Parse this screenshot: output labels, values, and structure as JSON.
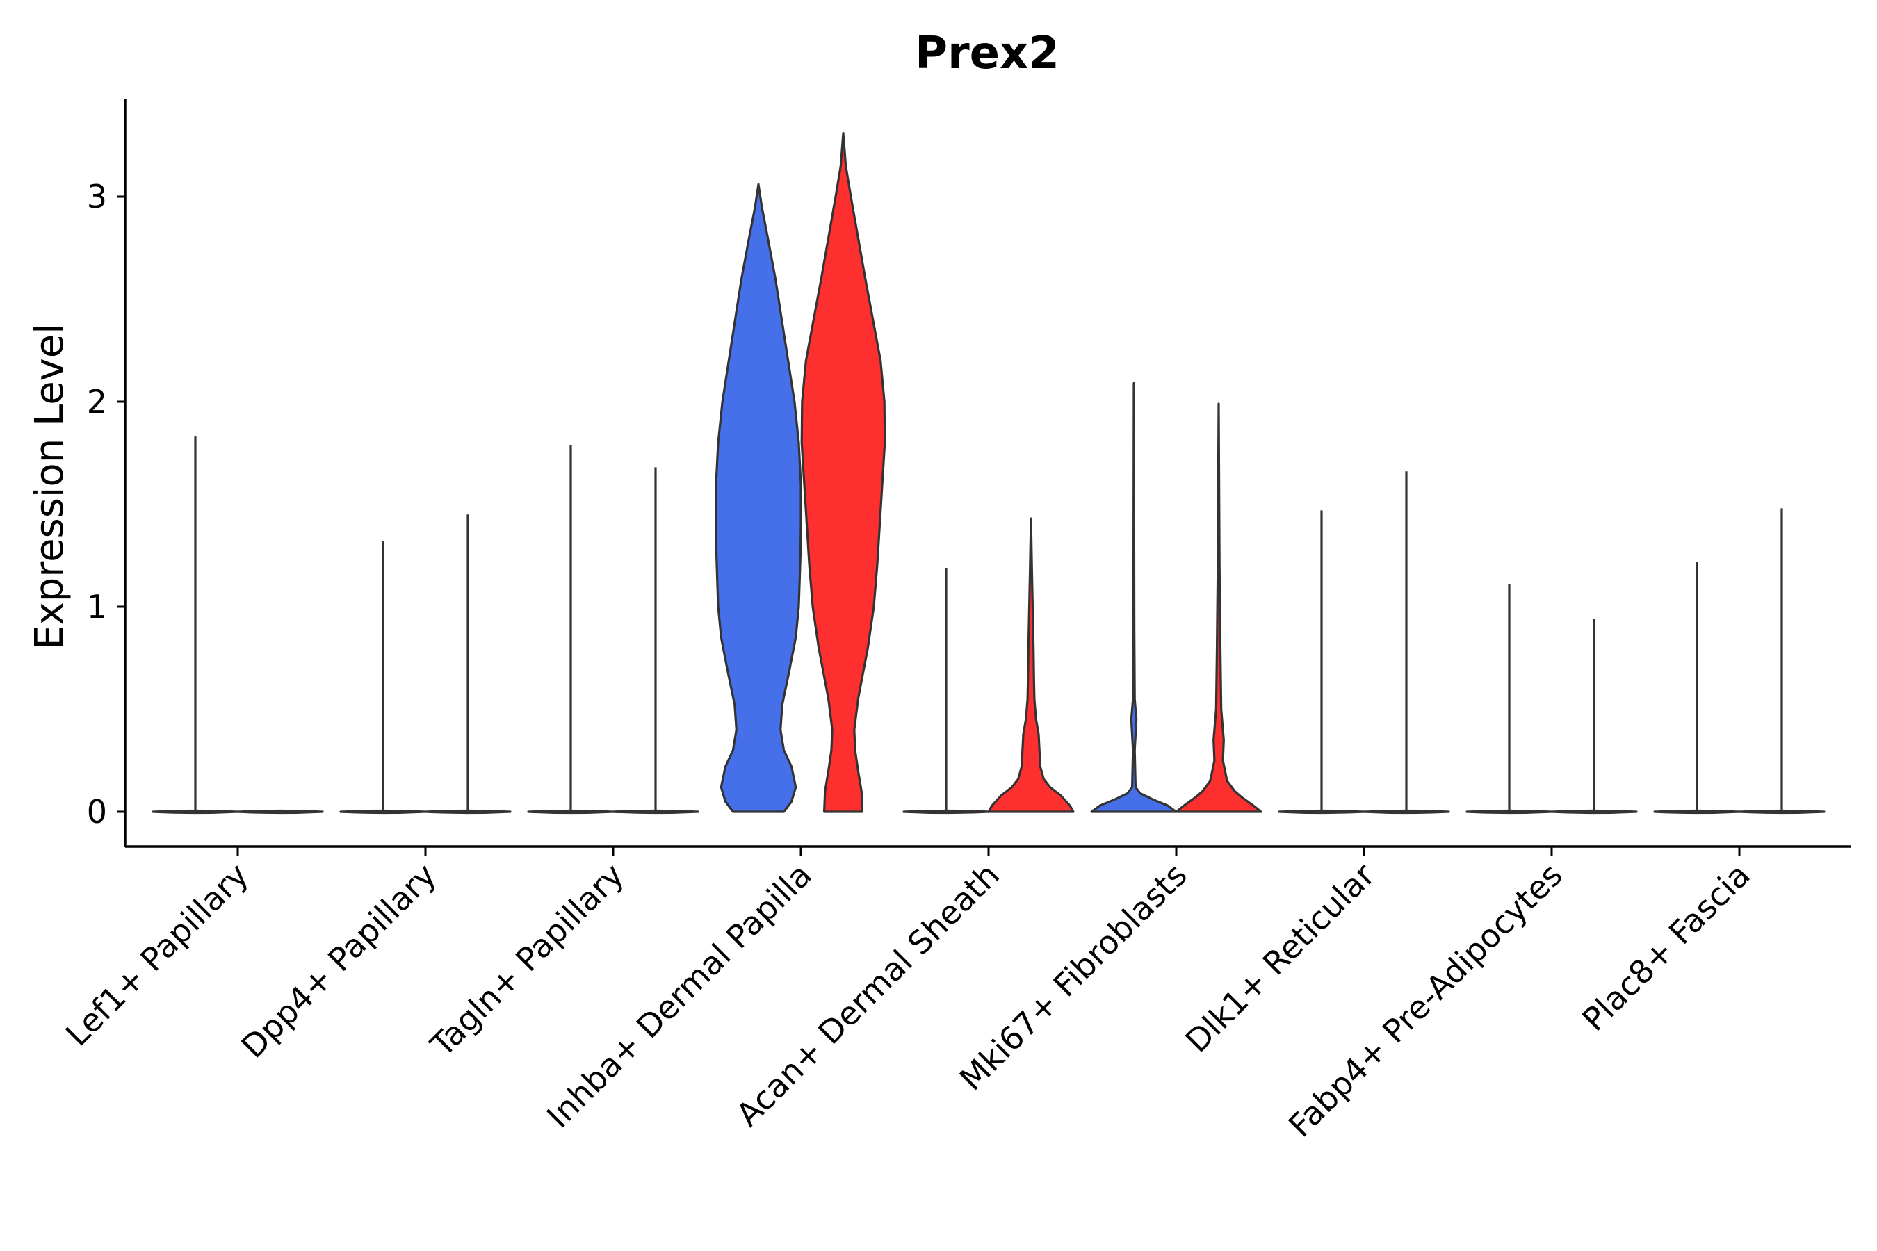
{
  "chart_data": {
    "type": "violin",
    "title": "Prex2",
    "xlabel": "",
    "ylabel": "Expression Level",
    "ylim": [
      -0.17,
      3.5
    ],
    "yticks": [
      0,
      1,
      2,
      3
    ],
    "categories": [
      "Lef1+ Papillary",
      "Dpp4+ Papillary",
      "Tagln+ Papillary",
      "Inhba+ Dermal Papilla",
      "Acan+ Dermal Sheath",
      "Mki67+ Fibroblasts",
      "Dlk1+ Reticular",
      "Fabp4+ Pre-Adipocytes",
      "Plac8+ Fascia"
    ],
    "groups": [
      {
        "name": "group-1",
        "color": "#4570ea"
      },
      {
        "name": "group-2",
        "color": "#fe2f2f"
      }
    ],
    "violins": [
      {
        "category": 0,
        "group": 0,
        "max": 1.83,
        "profile": [
          [
            0,
            0.05
          ],
          [
            0.02,
            0.01
          ],
          [
            1.83,
            0
          ]
        ]
      },
      {
        "category": 0,
        "group": 1,
        "max": 0,
        "profile": [
          [
            0,
            0.05
          ],
          [
            0.02,
            0.01
          ]
        ]
      },
      {
        "category": 1,
        "group": 0,
        "max": 1.32,
        "profile": [
          [
            0,
            0.05
          ],
          [
            0.02,
            0.01
          ],
          [
            1.32,
            0
          ]
        ]
      },
      {
        "category": 1,
        "group": 1,
        "max": 1.45,
        "profile": [
          [
            0,
            0.05
          ],
          [
            0.02,
            0.01
          ],
          [
            1.45,
            0
          ]
        ]
      },
      {
        "category": 2,
        "group": 0,
        "max": 1.79,
        "profile": [
          [
            0,
            0.05
          ],
          [
            0.02,
            0.01
          ],
          [
            1.79,
            0
          ]
        ]
      },
      {
        "category": 2,
        "group": 1,
        "max": 1.68,
        "profile": [
          [
            0,
            0.05
          ],
          [
            0.02,
            0.01
          ],
          [
            1.68,
            0
          ]
        ]
      },
      {
        "category": 3,
        "group": 0,
        "max": 3.06,
        "profile": [
          [
            0,
            0.6
          ],
          [
            0.05,
            0.78
          ],
          [
            0.12,
            0.88
          ],
          [
            0.22,
            0.78
          ],
          [
            0.3,
            0.6
          ],
          [
            0.4,
            0.52
          ],
          [
            0.52,
            0.56
          ],
          [
            0.68,
            0.72
          ],
          [
            0.85,
            0.88
          ],
          [
            1.0,
            0.95
          ],
          [
            1.12,
            0.97
          ],
          [
            1.25,
            0.99
          ],
          [
            1.4,
            1.0
          ],
          [
            1.6,
            1.0
          ],
          [
            1.8,
            0.95
          ],
          [
            2.0,
            0.85
          ],
          [
            2.2,
            0.7
          ],
          [
            2.4,
            0.55
          ],
          [
            2.6,
            0.4
          ],
          [
            2.8,
            0.22
          ],
          [
            2.95,
            0.08
          ],
          [
            3.06,
            0
          ]
        ]
      },
      {
        "category": 3,
        "group": 1,
        "max": 3.31,
        "profile": [
          [
            0,
            0.45
          ],
          [
            0.1,
            0.43
          ],
          [
            0.2,
            0.35
          ],
          [
            0.3,
            0.28
          ],
          [
            0.4,
            0.26
          ],
          [
            0.55,
            0.35
          ],
          [
            0.8,
            0.58
          ],
          [
            1.0,
            0.72
          ],
          [
            1.2,
            0.8
          ],
          [
            1.4,
            0.86
          ],
          [
            1.6,
            0.92
          ],
          [
            1.8,
            0.98
          ],
          [
            2.0,
            0.97
          ],
          [
            2.2,
            0.88
          ],
          [
            2.4,
            0.7
          ],
          [
            2.6,
            0.52
          ],
          [
            2.8,
            0.35
          ],
          [
            3.0,
            0.18
          ],
          [
            3.15,
            0.06
          ],
          [
            3.31,
            0
          ]
        ]
      },
      {
        "category": 4,
        "group": 0,
        "max": 1.19,
        "profile": [
          [
            0,
            0.05
          ],
          [
            0.02,
            0.01
          ],
          [
            1.19,
            0
          ]
        ]
      },
      {
        "category": 4,
        "group": 1,
        "max": 1.43,
        "profile": [
          [
            0,
            1.0
          ],
          [
            0.03,
            0.92
          ],
          [
            0.08,
            0.7
          ],
          [
            0.12,
            0.45
          ],
          [
            0.16,
            0.3
          ],
          [
            0.22,
            0.22
          ],
          [
            0.3,
            0.2
          ],
          [
            0.38,
            0.18
          ],
          [
            0.45,
            0.12
          ],
          [
            0.55,
            0.08
          ],
          [
            0.65,
            0.07
          ],
          [
            0.8,
            0.06
          ],
          [
            1.0,
            0.04
          ],
          [
            1.2,
            0.02
          ],
          [
            1.43,
            0
          ]
        ]
      },
      {
        "category": 5,
        "group": 0,
        "max": 2.09,
        "profile": [
          [
            0,
            1.0
          ],
          [
            0.03,
            0.8
          ],
          [
            0.06,
            0.45
          ],
          [
            0.09,
            0.15
          ],
          [
            0.12,
            0.04
          ],
          [
            0.3,
            0.02
          ],
          [
            0.45,
            0.06
          ],
          [
            0.55,
            0.02
          ],
          [
            0.9,
            0.01
          ],
          [
            2.09,
            0
          ]
        ]
      },
      {
        "category": 5,
        "group": 1,
        "max": 1.99,
        "profile": [
          [
            0,
            1.0
          ],
          [
            0.03,
            0.82
          ],
          [
            0.07,
            0.55
          ],
          [
            0.1,
            0.38
          ],
          [
            0.15,
            0.2
          ],
          [
            0.25,
            0.1
          ],
          [
            0.35,
            0.12
          ],
          [
            0.5,
            0.06
          ],
          [
            0.65,
            0.05
          ],
          [
            0.8,
            0.04
          ],
          [
            1.2,
            0.02
          ],
          [
            1.99,
            0
          ]
        ]
      },
      {
        "category": 6,
        "group": 0,
        "max": 1.47,
        "profile": [
          [
            0,
            0.05
          ],
          [
            0.02,
            0.01
          ],
          [
            1.47,
            0
          ]
        ]
      },
      {
        "category": 6,
        "group": 1,
        "max": 1.66,
        "profile": [
          [
            0,
            0.05
          ],
          [
            0.02,
            0.01
          ],
          [
            1.66,
            0
          ]
        ]
      },
      {
        "category": 7,
        "group": 0,
        "max": 1.11,
        "profile": [
          [
            0,
            0.05
          ],
          [
            0.02,
            0.01
          ],
          [
            1.11,
            0
          ]
        ]
      },
      {
        "category": 7,
        "group": 1,
        "max": 0.94,
        "profile": [
          [
            0,
            0.05
          ],
          [
            0.02,
            0.01
          ],
          [
            0.94,
            0
          ]
        ]
      },
      {
        "category": 8,
        "group": 0,
        "max": 1.22,
        "profile": [
          [
            0,
            0.05
          ],
          [
            0.02,
            0.01
          ],
          [
            1.22,
            0
          ]
        ]
      },
      {
        "category": 8,
        "group": 1,
        "max": 1.48,
        "profile": [
          [
            0,
            0.05
          ],
          [
            0.02,
            0.01
          ],
          [
            1.48,
            0
          ]
        ]
      }
    ]
  }
}
